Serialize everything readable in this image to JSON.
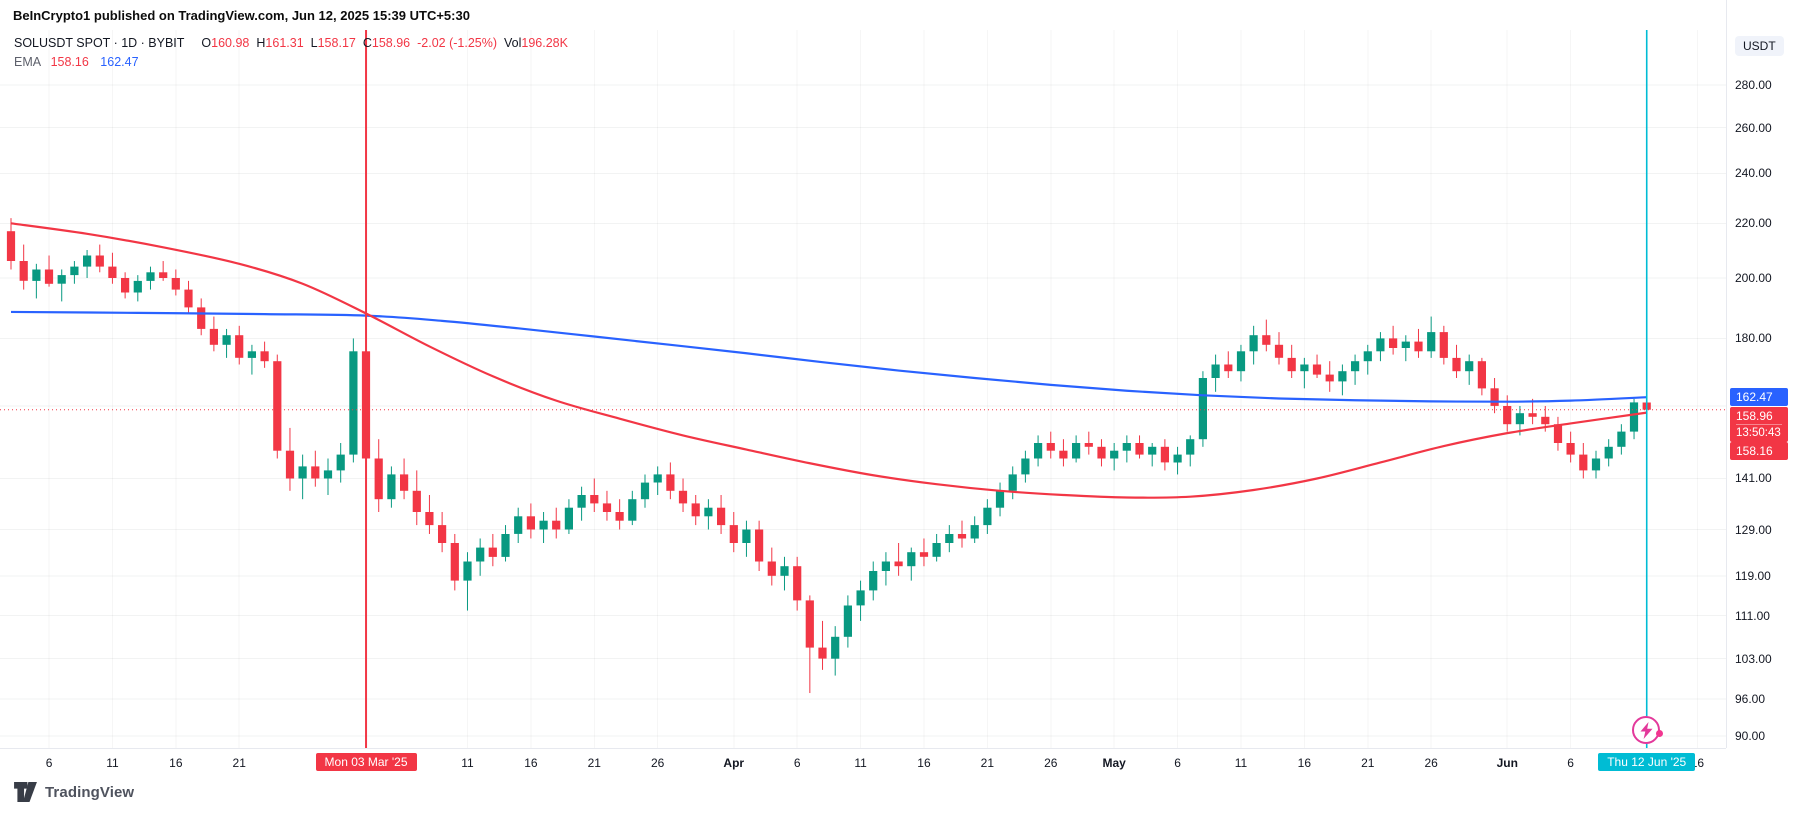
{
  "header": {
    "publish_line": "BeInCrypto1 published on TradingView.com, Jun 12, 2025 15:39 UTC+5:30"
  },
  "legend": {
    "title": "SOLUSDT SPOT · 1D · BYBIT",
    "o_label": "O",
    "o": "160.98",
    "h_label": "H",
    "h": "161.31",
    "l_label": "L",
    "l": "158.17",
    "c_label": "C",
    "c": "158.96",
    "change": "-2.02 (-1.25%)",
    "vol_label": "Vol",
    "vol": "196.28K",
    "ema_label": "EMA",
    "ema_fast": "158.16",
    "ema_slow": "162.47"
  },
  "price_axis": {
    "currency": "USDT",
    "labels": [
      {
        "text": "280.00",
        "value": 280
      },
      {
        "text": "260.00",
        "value": 260
      },
      {
        "text": "240.00",
        "value": 240
      },
      {
        "text": "220.00",
        "value": 220
      },
      {
        "text": "200.00",
        "value": 200
      },
      {
        "text": "180.00",
        "value": 180
      },
      {
        "text": "141.00",
        "value": 141
      },
      {
        "text": "129.00",
        "value": 129
      },
      {
        "text": "119.00",
        "value": 119
      },
      {
        "text": "111.00",
        "value": 111
      },
      {
        "text": "103.00",
        "value": 103
      },
      {
        "text": "96.00",
        "value": 96
      },
      {
        "text": "90.00",
        "value": 90
      }
    ],
    "badges": {
      "ema_slow": {
        "text": "162.47",
        "value": 162.47,
        "bg": "#2962FF"
      },
      "last": {
        "text": "158.96",
        "value": 158.96,
        "countdown": "13:50:43",
        "bg": "#F23645"
      },
      "ema_fast": {
        "text": "158.16",
        "value": 158.16,
        "bg": "#F23645"
      }
    }
  },
  "time_axis": {
    "ticks": [
      {
        "label": "6",
        "i": 3
      },
      {
        "label": "11",
        "i": 8
      },
      {
        "label": "16",
        "i": 13
      },
      {
        "label": "21",
        "i": 18
      },
      {
        "label": "11",
        "i": 36
      },
      {
        "label": "16",
        "i": 41
      },
      {
        "label": "21",
        "i": 46
      },
      {
        "label": "26",
        "i": 51
      },
      {
        "label": "Apr",
        "i": 57,
        "major": true
      },
      {
        "label": "6",
        "i": 62
      },
      {
        "label": "11",
        "i": 67
      },
      {
        "label": "16",
        "i": 72
      },
      {
        "label": "21",
        "i": 77
      },
      {
        "label": "26",
        "i": 82
      },
      {
        "label": "May",
        "i": 87,
        "major": true
      },
      {
        "label": "6",
        "i": 92
      },
      {
        "label": "11",
        "i": 97
      },
      {
        "label": "16",
        "i": 102
      },
      {
        "label": "21",
        "i": 107
      },
      {
        "label": "26",
        "i": 112
      },
      {
        "label": "Jun",
        "i": 118,
        "major": true
      },
      {
        "label": "6",
        "i": 123
      },
      {
        "label": "16",
        "i": 133
      }
    ],
    "event_badges": [
      {
        "name": "mar-3-event",
        "text": "Mon 03 Mar '25",
        "i": 28,
        "bg": "#F23645"
      },
      {
        "name": "jun-12-event",
        "text": "Thu 12 Jun '25",
        "i": 129,
        "bg": "#00BCD4"
      }
    ]
  },
  "footer": {
    "brand": "TradingView"
  },
  "chart_data": {
    "type": "candlestick",
    "title": "SOLUSDT SPOT 1D BYBIT",
    "scale": "log",
    "start_date": "2025-02-03",
    "interval_days": 1,
    "price_axis_range_top_to_bottom": [
      292,
      88
    ],
    "colors": {
      "up": "#089981",
      "down": "#F23645",
      "ema_fast": "#F23645",
      "ema_slow": "#2962FF",
      "price_line": "#F23645",
      "vline_mar": "#F23645",
      "vline_jun": "#00BCD4"
    },
    "last_price": 158.96,
    "price_line_value": 158.96,
    "grid_prices": [
      280,
      260,
      240,
      220,
      200,
      180,
      160,
      141,
      129,
      119,
      111,
      103,
      96,
      90
    ],
    "vlines": [
      {
        "i": 28,
        "color": "#F23645",
        "width": 2
      },
      {
        "i": 129,
        "color": "#00BCD4",
        "width": 1.6
      }
    ],
    "candles": [
      [
        217,
        222,
        203,
        206
      ],
      [
        206,
        212,
        196,
        199
      ],
      [
        199,
        205,
        193,
        203
      ],
      [
        203,
        208,
        197,
        198
      ],
      [
        198,
        203,
        192,
        201
      ],
      [
        201,
        206,
        198,
        204
      ],
      [
        204,
        210,
        200,
        208
      ],
      [
        208,
        212,
        202,
        204
      ],
      [
        204,
        209,
        198,
        200
      ],
      [
        200,
        202,
        193,
        195
      ],
      [
        195,
        201,
        192,
        199
      ],
      [
        199,
        204,
        196,
        202
      ],
      [
        202,
        206,
        199,
        200
      ],
      [
        200,
        203,
        194,
        196
      ],
      [
        196,
        199,
        188,
        190
      ],
      [
        190,
        193,
        181,
        183
      ],
      [
        183,
        187,
        176,
        178
      ],
      [
        178,
        183,
        174,
        181
      ],
      [
        181,
        184,
        172,
        174
      ],
      [
        174,
        178,
        169,
        176
      ],
      [
        176,
        179,
        171,
        173
      ],
      [
        173,
        175,
        146,
        148
      ],
      [
        148,
        154,
        138,
        141
      ],
      [
        141,
        147,
        136,
        144
      ],
      [
        144,
        148,
        139,
        141
      ],
      [
        141,
        146,
        137,
        143
      ],
      [
        143,
        150,
        140,
        147
      ],
      [
        147,
        180,
        145,
        176
      ],
      [
        176,
        181,
        142,
        146
      ],
      [
        146,
        151,
        133,
        136
      ],
      [
        136,
        144,
        134,
        142
      ],
      [
        142,
        146,
        136,
        138
      ],
      [
        138,
        143,
        130,
        133
      ],
      [
        133,
        137,
        128,
        130
      ],
      [
        130,
        133,
        124,
        126
      ],
      [
        126,
        128,
        116,
        118
      ],
      [
        118,
        124,
        112,
        122
      ],
      [
        122,
        127,
        119,
        125
      ],
      [
        125,
        128,
        121,
        123
      ],
      [
        123,
        130,
        122,
        128
      ],
      [
        128,
        134,
        126,
        132
      ],
      [
        132,
        135,
        127,
        129
      ],
      [
        129,
        133,
        126,
        131
      ],
      [
        131,
        134,
        127,
        129
      ],
      [
        129,
        136,
        128,
        134
      ],
      [
        134,
        139,
        131,
        137
      ],
      [
        137,
        141,
        133,
        135
      ],
      [
        135,
        138,
        131,
        133
      ],
      [
        133,
        136,
        129,
        131
      ],
      [
        131,
        138,
        130,
        136
      ],
      [
        136,
        142,
        134,
        140
      ],
      [
        140,
        144,
        137,
        142
      ],
      [
        142,
        145,
        136,
        138
      ],
      [
        138,
        141,
        133,
        135
      ],
      [
        135,
        137,
        130,
        132
      ],
      [
        132,
        136,
        129,
        134
      ],
      [
        134,
        137,
        128,
        130
      ],
      [
        130,
        133,
        124,
        126
      ],
      [
        126,
        131,
        123,
        129
      ],
      [
        129,
        131,
        120,
        122
      ],
      [
        122,
        125,
        117,
        119
      ],
      [
        119,
        123,
        116,
        121
      ],
      [
        121,
        123,
        112,
        114
      ],
      [
        114,
        115,
        97,
        105
      ],
      [
        105,
        110,
        101,
        103
      ],
      [
        103,
        109,
        100,
        107
      ],
      [
        107,
        115,
        105,
        113
      ],
      [
        113,
        118,
        110,
        116
      ],
      [
        116,
        122,
        114,
        120
      ],
      [
        120,
        124,
        117,
        122
      ],
      [
        122,
        126,
        119,
        121
      ],
      [
        121,
        125,
        118,
        124
      ],
      [
        124,
        127,
        121,
        123
      ],
      [
        123,
        128,
        122,
        126
      ],
      [
        126,
        130,
        124,
        128
      ],
      [
        128,
        131,
        125,
        127
      ],
      [
        127,
        132,
        126,
        130
      ],
      [
        130,
        136,
        128,
        134
      ],
      [
        134,
        140,
        132,
        138
      ],
      [
        138,
        144,
        136,
        142
      ],
      [
        142,
        148,
        140,
        146
      ],
      [
        146,
        152,
        144,
        150
      ],
      [
        150,
        153,
        146,
        148
      ],
      [
        148,
        151,
        144,
        146
      ],
      [
        146,
        152,
        145,
        150
      ],
      [
        150,
        153,
        147,
        149
      ],
      [
        149,
        151,
        144,
        146
      ],
      [
        146,
        150,
        143,
        148
      ],
      [
        148,
        152,
        145,
        150
      ],
      [
        150,
        152,
        146,
        147
      ],
      [
        147,
        150,
        144,
        149
      ],
      [
        149,
        151,
        143,
        145
      ],
      [
        145,
        149,
        142,
        147
      ],
      [
        147,
        152,
        144,
        151
      ],
      [
        151,
        170,
        149,
        168
      ],
      [
        168,
        175,
        164,
        172
      ],
      [
        172,
        176,
        168,
        170
      ],
      [
        170,
        178,
        167,
        176
      ],
      [
        176,
        184,
        172,
        181
      ],
      [
        181,
        186,
        176,
        178
      ],
      [
        178,
        182,
        172,
        174
      ],
      [
        174,
        178,
        168,
        170
      ],
      [
        170,
        174,
        165,
        172
      ],
      [
        172,
        175,
        168,
        169
      ],
      [
        169,
        173,
        164,
        167
      ],
      [
        167,
        172,
        163,
        170
      ],
      [
        170,
        175,
        166,
        173
      ],
      [
        173,
        178,
        169,
        176
      ],
      [
        176,
        182,
        173,
        180
      ],
      [
        180,
        184,
        175,
        177
      ],
      [
        177,
        181,
        173,
        179
      ],
      [
        179,
        183,
        174,
        176
      ],
      [
        176,
        187,
        174,
        182
      ],
      [
        182,
        184,
        172,
        174
      ],
      [
        174,
        178,
        168,
        170
      ],
      [
        170,
        175,
        166,
        173
      ],
      [
        173,
        174,
        163,
        165
      ],
      [
        165,
        168,
        158,
        160
      ],
      [
        160,
        163,
        153,
        155
      ],
      [
        155,
        160,
        152,
        158
      ],
      [
        158,
        162,
        155,
        157
      ],
      [
        157,
        160,
        153,
        155
      ],
      [
        155,
        157,
        148,
        150
      ],
      [
        150,
        153,
        145,
        147
      ],
      [
        147,
        150,
        141,
        143
      ],
      [
        143,
        148,
        141,
        146
      ],
      [
        146,
        151,
        144,
        149
      ],
      [
        149,
        155,
        147,
        153
      ],
      [
        153,
        162,
        151,
        161
      ],
      [
        160.98,
        161.31,
        158.17,
        158.96
      ]
    ],
    "ema_fast_points": [
      [
        0,
        220
      ],
      [
        6,
        216
      ],
      [
        12,
        211
      ],
      [
        18,
        205
      ],
      [
        23,
        198
      ],
      [
        28,
        188
      ],
      [
        33,
        177.5
      ],
      [
        38,
        168.5
      ],
      [
        43,
        161.5
      ],
      [
        48,
        156.5
      ],
      [
        53,
        152
      ],
      [
        58,
        148.3
      ],
      [
        63,
        144.8
      ],
      [
        68,
        141.8
      ],
      [
        73,
        139.6
      ],
      [
        78,
        138
      ],
      [
        83,
        137
      ],
      [
        88,
        136.4
      ],
      [
        93,
        136.6
      ],
      [
        98,
        138.2
      ],
      [
        103,
        141
      ],
      [
        108,
        145
      ],
      [
        113,
        149.2
      ],
      [
        118,
        152.6
      ],
      [
        123,
        155.2
      ],
      [
        129,
        158.16
      ]
    ],
    "ema_slow_points": [
      [
        0,
        188.5
      ],
      [
        10,
        188.2
      ],
      [
        20,
        187.8
      ],
      [
        28,
        187.3
      ],
      [
        34,
        185.6
      ],
      [
        40,
        183.2
      ],
      [
        46,
        180.6
      ],
      [
        52,
        178
      ],
      [
        58,
        175.4
      ],
      [
        64,
        172.7
      ],
      [
        70,
        170.2
      ],
      [
        76,
        168
      ],
      [
        82,
        166
      ],
      [
        88,
        164.3
      ],
      [
        94,
        163
      ],
      [
        100,
        162.1
      ],
      [
        106,
        161.6
      ],
      [
        112,
        161.3
      ],
      [
        118,
        161.2
      ],
      [
        123,
        161.5
      ],
      [
        129,
        162.47
      ]
    ]
  }
}
